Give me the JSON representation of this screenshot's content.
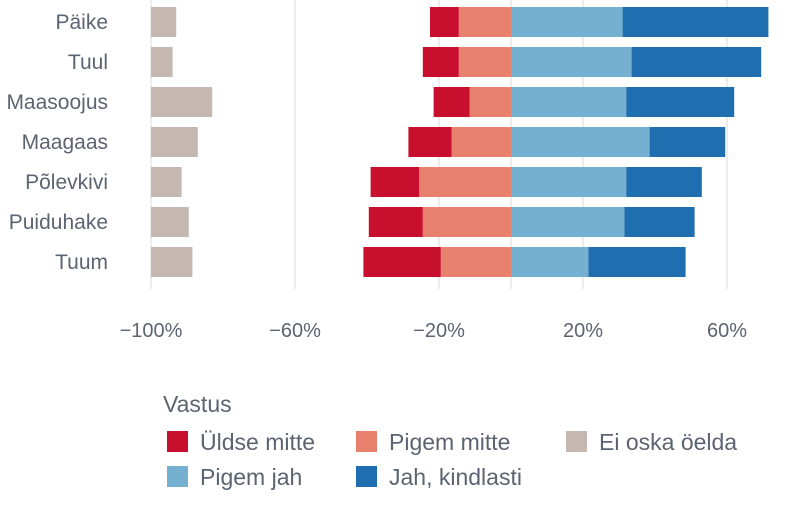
{
  "chart_data": {
    "type": "bar",
    "orientation": "horizontal",
    "stacking": "diverging",
    "categories": [
      "Päike",
      "Tuul",
      "Maasoojus",
      "Maagaas",
      "Põlevkivi",
      "Puiduhake",
      "Tuum"
    ],
    "series": [
      {
        "key": "yldse_mitte",
        "name": "Üldse mitte",
        "color": "#c8102e",
        "values": [
          -8,
          -10,
          -10,
          -12,
          -13.5,
          -15,
          -21.5
        ]
      },
      {
        "key": "pigem_mitte",
        "name": "Pigem mitte",
        "color": "#e8806e",
        "values": [
          -14.5,
          -14.5,
          -11.5,
          -16.5,
          -25.5,
          -24.5,
          -19.5
        ]
      },
      {
        "key": "pigem_jah",
        "name": "Pigem jah",
        "color": "#76b0d1",
        "values": [
          31,
          33.5,
          32,
          38.5,
          32,
          31.5,
          21.5
        ]
      },
      {
        "key": "jah_kindlasti",
        "name": "Jah, kindlasti",
        "color": "#1f6fb0",
        "values": [
          40.5,
          36,
          30,
          21,
          21,
          19.5,
          27
        ]
      },
      {
        "key": "ei_oska",
        "name": "Ei oska öelda",
        "color": "#c4b8b0",
        "values": [
          7,
          6,
          17,
          13,
          8.5,
          10.5,
          11.5
        ]
      }
    ],
    "ei_oska_base": -100,
    "xlim": [
      -104,
      72
    ],
    "xticks": [
      -100,
      -60,
      -20,
      20,
      60
    ],
    "xtick_labels": [
      "−100%",
      "−60%",
      "−20%",
      "20%",
      "60%"
    ],
    "legend_title": "Vastus",
    "legend_position": "bottom"
  }
}
